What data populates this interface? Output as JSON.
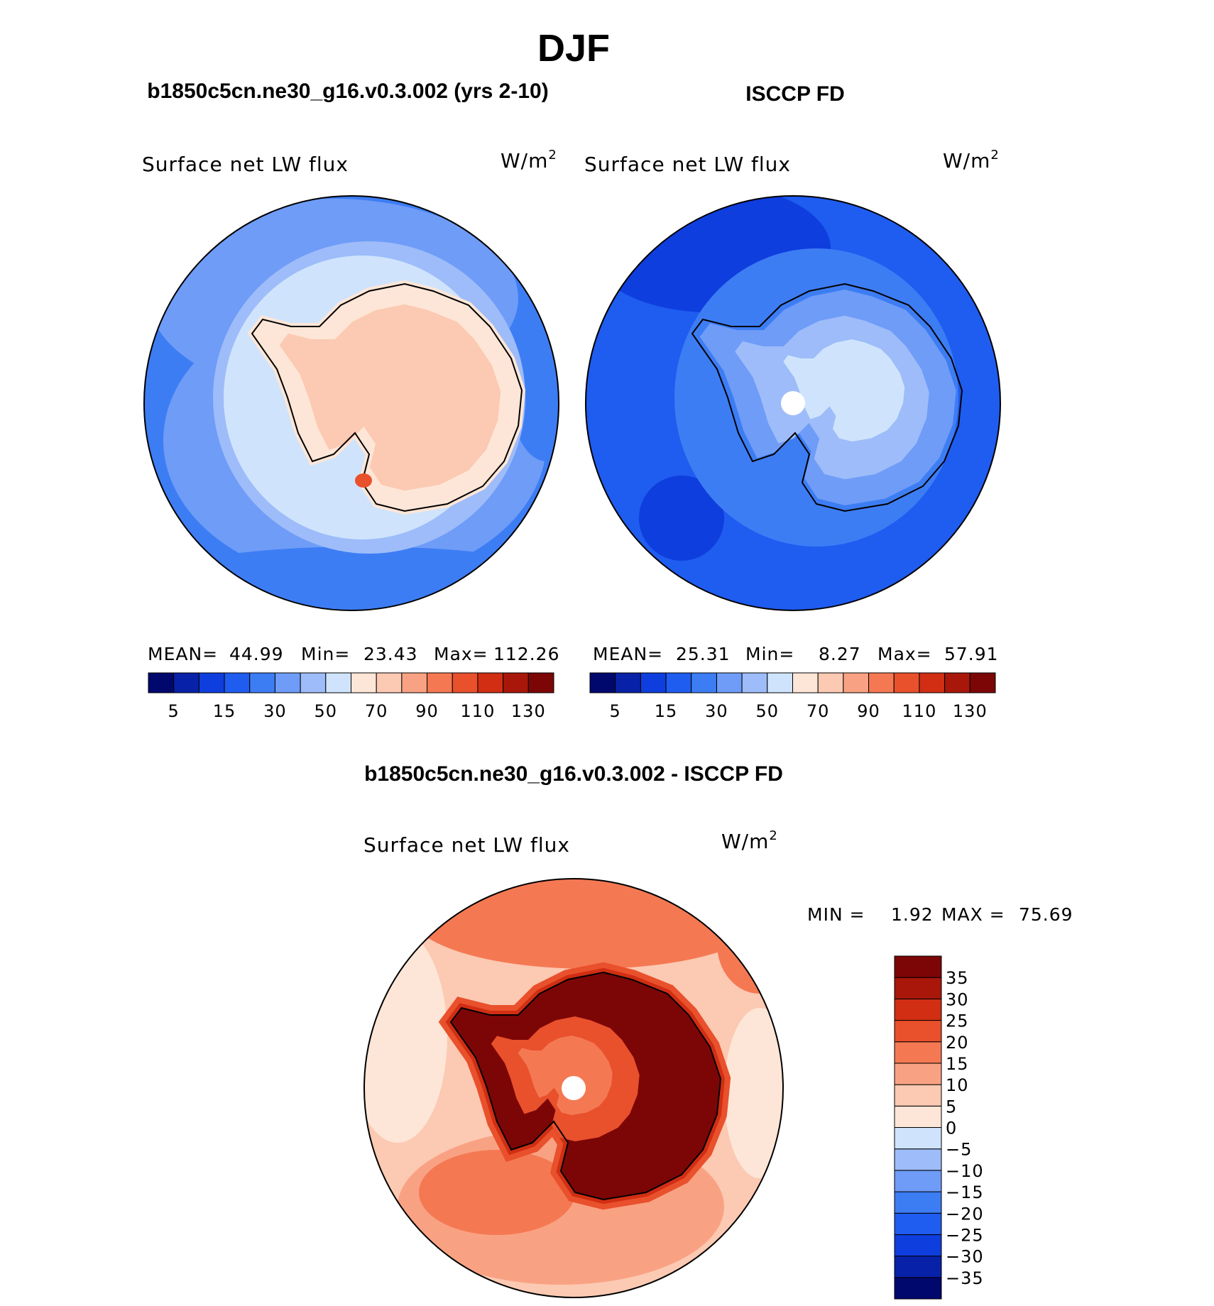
{
  "title": "DJF",
  "panels": {
    "model": {
      "case_label": "b1850c5cn.ne30_g16.v0.3.002 (yrs 2-10)",
      "variable": "Surface net LW flux",
      "units_base": "W/m",
      "units_exp": "2",
      "stats": {
        "mean_label": "MEAN=",
        "mean": "44.99",
        "min_label": "Min=",
        "min": "23.43",
        "max_label": "Max=",
        "max": "112.26"
      }
    },
    "obs": {
      "case_label": "ISCCP FD",
      "variable": "Surface net LW flux",
      "units_base": "W/m",
      "units_exp": "2",
      "stats": {
        "mean_label": "MEAN=",
        "mean": "25.31",
        "min_label": "Min=",
        "min": "8.27",
        "max_label": "Max=",
        "max": "57.91"
      }
    },
    "diff": {
      "case_label": "b1850c5cn.ne30_g16.v0.3.002 - ISCCP FD",
      "variable": "Surface net LW flux",
      "units_base": "W/m",
      "units_exp": "2",
      "stats": {
        "min_label": "MIN =",
        "min": "1.92",
        "max_label": "MAX =",
        "max": "75.69"
      }
    }
  },
  "abs_colorbar": {
    "colors": [
      "#00086e",
      "#0722a8",
      "#0f3ede",
      "#1f5cf0",
      "#3d7df4",
      "#6e9cf7",
      "#9dbcf9",
      "#cfe4fc",
      "#fde6d7",
      "#fcc9b2",
      "#f9a283",
      "#f47953",
      "#e9502c",
      "#d12e13",
      "#a8170a",
      "#7c0606"
    ],
    "ticks": [
      "5",
      "15",
      "30",
      "50",
      "70",
      "90",
      "110",
      "130"
    ]
  },
  "diff_colorbar": {
    "colors": [
      "#00086e",
      "#0722a8",
      "#0f3ede",
      "#1f5cf0",
      "#3d7df4",
      "#6e9cf7",
      "#9dbcf9",
      "#cfe4fc",
      "#fde6d7",
      "#fcc9b2",
      "#f9a283",
      "#f47953",
      "#e9502c",
      "#d12e13",
      "#a8170a",
      "#7c0606"
    ],
    "ticks": [
      "−35",
      "−30",
      "−25",
      "−20",
      "−15",
      "−10",
      "−5",
      "0",
      "5",
      "10",
      "15",
      "20",
      "25",
      "30",
      "35"
    ]
  }
}
